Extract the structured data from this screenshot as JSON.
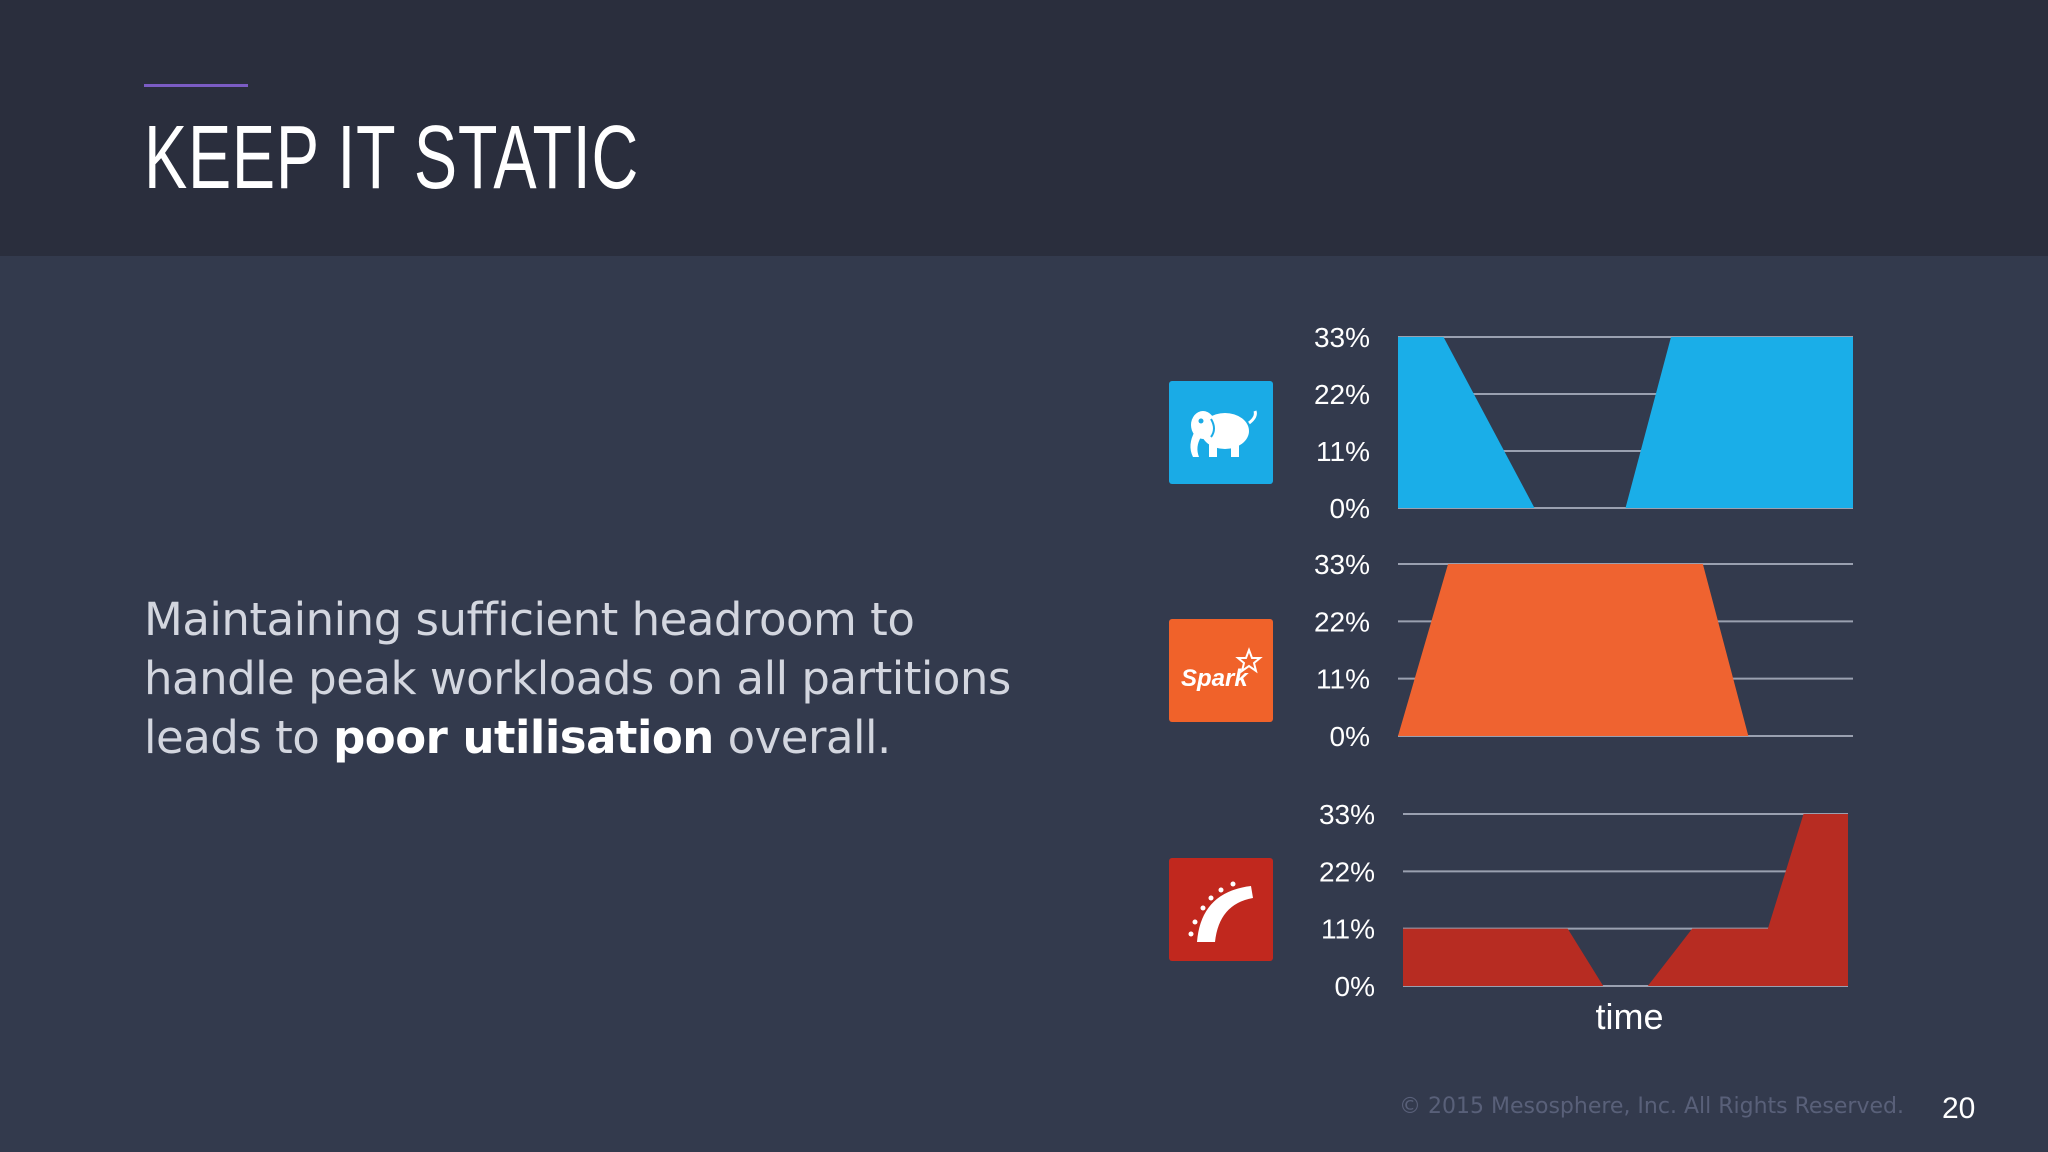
{
  "slide": {
    "title": "KEEP IT STATIC",
    "body": {
      "before": "Maintaining sufficient headroom to handle peak workloads on all partitions leads to ",
      "bold": "poor utilisation",
      "after": " overall."
    },
    "footer": "© 2015 Mesosphere, Inc. All Rights Reserved.",
    "page_number": "20"
  },
  "logos": [
    {
      "name": "hadoop",
      "icon": "elephant-icon",
      "color": "#1aabe6"
    },
    {
      "name": "spark",
      "icon": "spark-icon",
      "text": "Spark",
      "color": "#f0622a"
    },
    {
      "name": "rails",
      "icon": "rails-icon",
      "color": "#c1281e"
    }
  ],
  "chart_data": [
    {
      "type": "area",
      "series": [
        {
          "x": [
            0,
            0.1,
            0.3,
            0.5,
            0.6,
            1
          ],
          "values": [
            33,
            33,
            0,
            0,
            33,
            33
          ]
        }
      ],
      "yticks": [
        "33%",
        "22%",
        "11%",
        "0%"
      ],
      "ylim": [
        0,
        33
      ],
      "xlabel": "",
      "grid": true,
      "color": "#1aaee8"
    },
    {
      "type": "area",
      "series": [
        {
          "x": [
            0,
            0.11,
            0.67,
            0.77,
            1
          ],
          "values": [
            0,
            33,
            33,
            0,
            0
          ]
        }
      ],
      "yticks": [
        "33%",
        "22%",
        "11%",
        "0%"
      ],
      "ylim": [
        0,
        33
      ],
      "xlabel": "",
      "grid": true,
      "color": "#ef6330"
    },
    {
      "type": "area",
      "series": [
        {
          "x": [
            0,
            0.37,
            0.45,
            0.55,
            0.65,
            0.82,
            0.9,
            1
          ],
          "values": [
            11,
            11,
            0,
            0,
            11,
            11,
            33,
            33
          ]
        }
      ],
      "yticks": [
        "33%",
        "22%",
        "11%",
        "0%"
      ],
      "ylim": [
        0,
        33
      ],
      "xlabel": "time",
      "grid": true,
      "color": "#b72c22"
    }
  ]
}
